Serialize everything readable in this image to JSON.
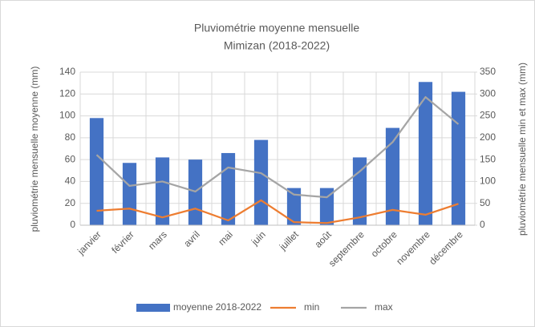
{
  "chart_data": {
    "type": "bar",
    "title": "Pluviométrie moyenne mensuelle",
    "subtitle": "Mimizan (2018-2022)",
    "y_label": "pluviométrie mensuelle moyenne (mm)",
    "y2_label": "pluviométrie mensuelle min et max (mm)",
    "categories": [
      "janvier",
      "février",
      "mars",
      "avril",
      "mai",
      "juin",
      "juillet",
      "août",
      "septembre",
      "octobre",
      "novembre",
      "décembre"
    ],
    "series": [
      {
        "name": "moyenne 2018-2022",
        "type": "bar",
        "color": "#4472c4",
        "values": [
          98,
          57,
          62,
          60,
          66,
          78,
          34,
          34,
          62,
          89,
          131,
          122
        ]
      },
      {
        "name": "min",
        "type": "line",
        "axis": "y2",
        "color": "#ed7d31",
        "values": [
          33,
          38,
          18,
          38,
          11,
          57,
          7,
          5,
          18,
          35,
          24,
          49
        ]
      },
      {
        "name": "max",
        "type": "line",
        "axis": "y2",
        "color": "#a5a5a5",
        "values": [
          161,
          90,
          100,
          77,
          132,
          119,
          70,
          64,
          123,
          190,
          293,
          231
        ]
      }
    ],
    "ylim": [
      0,
      140
    ],
    "yticks": [
      0,
      20,
      40,
      60,
      80,
      100,
      120,
      140
    ],
    "y2lim": [
      0,
      350
    ],
    "y2ticks": [
      0,
      50,
      100,
      150,
      200,
      250,
      300,
      350
    ],
    "grid": true,
    "legend": "bottom"
  }
}
